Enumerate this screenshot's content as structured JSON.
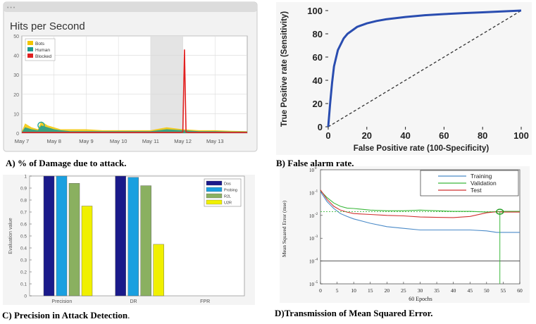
{
  "captions": {
    "a": "A)   % of Damage due to attack.",
    "b": "B) False alarm rate.",
    "c": "C) Precision in Attack Detection",
    "c_tail": ".",
    "d": "D)Transmission of Mean Squared Error."
  },
  "window": {
    "title": "Hits per Second",
    "dots": "• • •"
  },
  "chart_data": [
    {
      "id": "A",
      "type": "area",
      "title": "Hits per Second",
      "ylim": [
        0,
        50
      ],
      "yticks": [
        "0",
        "10",
        "20",
        "30",
        "40",
        "50"
      ],
      "xticks": [
        "May 7",
        "May 8",
        "May 9",
        "May 10",
        "May 11",
        "May 12",
        "May 13"
      ],
      "x_range_days": [
        7,
        14
      ],
      "shaded_days": [
        11,
        12
      ],
      "legend": [
        {
          "name": "Bots",
          "color": "#f2c500"
        },
        {
          "name": "Human",
          "color": "#1a9a8f"
        },
        {
          "name": "Blocked",
          "color": "#e02020"
        }
      ],
      "series": [
        {
          "name": "Bots",
          "x": [
            7,
            7.1,
            7.3,
            7.5,
            7.6,
            7.8,
            8,
            8.2,
            8.5,
            9,
            9.5,
            10,
            10.5,
            11,
            11.5,
            12,
            12.5,
            13,
            13.5,
            14
          ],
          "values": [
            1,
            5,
            3,
            2,
            6,
            4,
            3,
            2,
            2,
            2,
            1.5,
            1.5,
            1.5,
            1.5,
            3,
            2,
            1.5,
            1.5,
            1.2,
            1
          ]
        },
        {
          "name": "Human",
          "x": [
            7,
            7.1,
            7.3,
            7.5,
            7.6,
            7.8,
            8,
            8.2,
            8.5,
            9,
            9.5,
            10,
            10.5,
            11,
            11.5,
            12,
            12.5,
            13,
            13.5,
            14
          ],
          "values": [
            0.5,
            3,
            2,
            1.5,
            4,
            3,
            2,
            1.5,
            1,
            1,
            1,
            1,
            1,
            1,
            2,
            1.5,
            1,
            1,
            0.8,
            0.8
          ]
        },
        {
          "name": "Blocked",
          "x": [
            7,
            11.9,
            12.0,
            12.05,
            12.1,
            12.2,
            14
          ],
          "values": [
            0.3,
            0.3,
            0.5,
            43,
            0.5,
            0.3,
            0.3
          ]
        }
      ],
      "marker": {
        "x": 7.6,
        "y": 4
      }
    },
    {
      "id": "B",
      "type": "line",
      "xlabel": "False Positive rate (100-Specificity)",
      "ylabel": "True Positive rate (Sensitivity)",
      "xlim": [
        0,
        100
      ],
      "ylim": [
        0,
        100
      ],
      "xticks": [
        0,
        20,
        40,
        60,
        80,
        100
      ],
      "yticks": [
        0,
        20,
        40,
        60,
        80,
        100
      ],
      "series": [
        {
          "name": "ROC",
          "color": "#2a4db0",
          "x": [
            0,
            1,
            2,
            3,
            5,
            8,
            10,
            15,
            20,
            25,
            30,
            40,
            50,
            60,
            70,
            80,
            90,
            100
          ],
          "values": [
            0,
            20,
            38,
            52,
            66,
            76,
            80,
            86,
            89,
            91,
            92.5,
            94.5,
            96,
            97,
            97.8,
            98.5,
            99.2,
            100
          ]
        },
        {
          "name": "Reference",
          "style": "dashed",
          "x": [
            0,
            100
          ],
          "values": [
            0,
            100
          ]
        }
      ]
    },
    {
      "id": "C",
      "type": "bar",
      "ylabel": "Evaluation value",
      "ylim": [
        0,
        1
      ],
      "yticks": [
        "0",
        "0.1",
        "0.2",
        "0.3",
        "0.4",
        "0.5",
        "0.6",
        "0.7",
        "0.8",
        "0.9",
        "1"
      ],
      "categories": [
        "Precision",
        "DR",
        "FPR"
      ],
      "series": [
        {
          "name": "Dos",
          "color": "#1a1a8a",
          "values": [
            1.0,
            1.0,
            0.0
          ]
        },
        {
          "name": "Probing",
          "color": "#1aa0e0",
          "values": [
            1.0,
            0.99,
            0.0
          ]
        },
        {
          "name": "R2L",
          "color": "#8ab060",
          "values": [
            0.94,
            0.92,
            0.0
          ]
        },
        {
          "name": "U2R",
          "color": "#f0f000",
          "values": [
            0.75,
            0.43,
            0.0
          ]
        }
      ]
    },
    {
      "id": "D",
      "type": "line",
      "xlabel": "60 Epochs",
      "ylabel": "Mean Squared Error  (mse)",
      "xlim": [
        0,
        60
      ],
      "ylim_log10": [
        -5,
        0
      ],
      "xticks": [
        0,
        5,
        10,
        15,
        20,
        25,
        30,
        35,
        40,
        45,
        50,
        55,
        60
      ],
      "ytick_labels": [
        "10",
        "10",
        "10",
        "10",
        "10",
        "10"
      ],
      "ytick_exponents": [
        "0",
        "-1",
        "-2",
        "-3",
        "-4",
        "-5"
      ],
      "best_epoch": 54,
      "series": [
        {
          "name": "Training",
          "color": "#4a8ac8",
          "x": [
            0,
            2,
            4,
            6,
            8,
            10,
            15,
            20,
            25,
            30,
            35,
            40,
            45,
            50,
            52,
            53,
            55,
            60
          ],
          "values": [
            0.11,
            0.04,
            0.02,
            0.012,
            0.009,
            0.007,
            0.0045,
            0.0032,
            0.0027,
            0.0023,
            0.0023,
            0.0023,
            0.0023,
            0.0021,
            0.0019,
            0.0018,
            0.0018,
            0.0018
          ]
        },
        {
          "name": "Validation",
          "color": "#3cb83c",
          "x": [
            0,
            2,
            4,
            6,
            8,
            10,
            15,
            20,
            25,
            30,
            35,
            40,
            45,
            50,
            53,
            55,
            60
          ],
          "values": [
            0.12,
            0.06,
            0.035,
            0.025,
            0.021,
            0.02,
            0.017,
            0.016,
            0.016,
            0.017,
            0.016,
            0.015,
            0.015,
            0.014,
            0.0145,
            0.015,
            0.015
          ]
        },
        {
          "name": "Test",
          "color": "#d03030",
          "x": [
            0,
            2,
            4,
            6,
            8,
            10,
            15,
            20,
            25,
            30,
            35,
            40,
            45,
            50,
            53,
            55,
            60
          ],
          "values": [
            0.13,
            0.05,
            0.025,
            0.017,
            0.014,
            0.012,
            0.011,
            0.01,
            0.0095,
            0.0085,
            0.0082,
            0.008,
            0.009,
            0.013,
            0.0145,
            0.014,
            0.014
          ]
        }
      ]
    }
  ]
}
